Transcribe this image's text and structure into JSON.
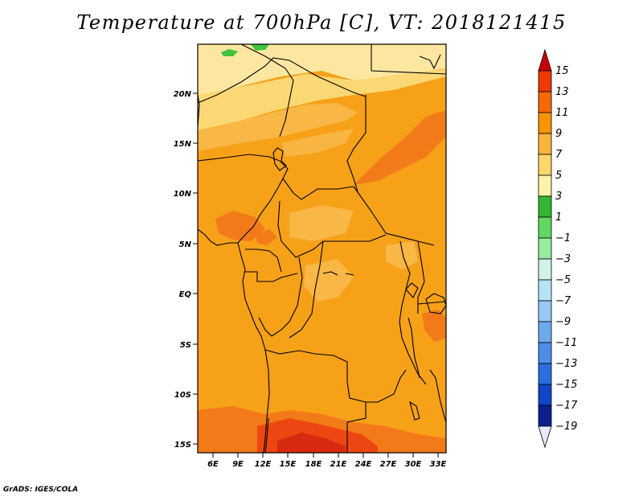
{
  "title": "Temperature at 700hPa [C], VT: 2018121415",
  "credit": "GrADS: IGES/COLA",
  "map": {
    "lat_ticks": [
      "20N",
      "15N",
      "10N",
      "5N",
      "EQ",
      "5S",
      "10S",
      "15S"
    ],
    "lon_ticks": [
      "6E",
      "9E",
      "12E",
      "15E",
      "18E",
      "21E",
      "24E",
      "27E",
      "30E",
      "33E"
    ]
  },
  "colorbar": {
    "labels": [
      "15",
      "13",
      "11",
      "9",
      "7",
      "5",
      "3",
      "1",
      "−1",
      "−3",
      "−5",
      "−7",
      "−9",
      "−11",
      "−13",
      "−15",
      "−17",
      "−19"
    ],
    "colors": [
      "#c80000",
      "#ee3a00",
      "#f46a00",
      "#f99400",
      "#fbb53e",
      "#fcd868",
      "#fdf3a8",
      "#33b733",
      "#62d862",
      "#9aeca0",
      "#cff3e5",
      "#b7e3f7",
      "#97c9f2",
      "#6ea9ec",
      "#4d8de6",
      "#2a6fdf",
      "#1045c8",
      "#0c1f8e",
      "#060a55"
    ]
  },
  "colors": {
    "map_base": "#f6a118",
    "light_yellow": "#fde7a0",
    "pale_yellow": "#fcd875",
    "light_orange": "#f9b746",
    "dark_orange": "#f27a18",
    "red_orange": "#ec4712",
    "red": "#d82a10",
    "green": "#3ec43e"
  }
}
